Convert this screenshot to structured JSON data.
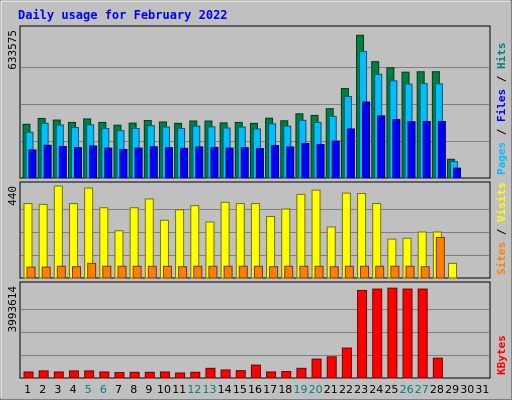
{
  "chart_data": {
    "type": "bar",
    "title": "Daily usage for February 2022",
    "days": [
      "1",
      "2",
      "3",
      "4",
      "5",
      "6",
      "7",
      "8",
      "9",
      "10",
      "11",
      "12",
      "13",
      "14",
      "15",
      "16",
      "17",
      "18",
      "19",
      "20",
      "21",
      "22",
      "23",
      "24",
      "25",
      "26",
      "27",
      "28",
      "29",
      "30",
      "31"
    ],
    "weekend_days": [
      "5",
      "6",
      "12",
      "13",
      "19",
      "20",
      "26",
      "27"
    ],
    "panels": [
      {
        "id": "hits-files-pages",
        "max_label": "633575",
        "ylim": [
          0,
          633575
        ],
        "legend": [
          "Pages",
          "Files",
          "Hits"
        ],
        "series": [
          {
            "name": "Hits",
            "color": "#008040",
            "values": [
              230000,
              255000,
              248000,
              238000,
              253000,
              238000,
              226000,
              235000,
              246000,
              240000,
              234000,
              244000,
              244000,
              236000,
              238000,
              234000,
              256000,
              245000,
              275000,
              268000,
              297000,
              383000,
              611000,
              498000,
              472000,
              453000,
              455000,
              455000,
              80000,
              0,
              0
            ]
          },
          {
            "name": "Files",
            "color": "#00bfff",
            "values": [
              196000,
              234000,
              227000,
              216000,
              228000,
              212000,
              203000,
              212000,
              224000,
              218000,
              212000,
              222000,
              219000,
              214000,
              218000,
              210000,
              232000,
              222000,
              247000,
              238000,
              264000,
              349000,
              541000,
              444000,
              416000,
              402000,
              404000,
              403000,
              70000,
              0,
              0
            ]
          },
          {
            "name": "Pages",
            "color": "#0000ff",
            "values": [
              120000,
              140000,
              135000,
              130000,
              137000,
              128000,
              122000,
              128000,
              134000,
              130000,
              127000,
              133000,
              131000,
              128000,
              130000,
              126000,
              139000,
              133000,
              148000,
              143000,
              158000,
              210000,
              325000,
              266000,
              250000,
              241000,
              242000,
              242000,
              42000,
              0,
              0
            ]
          }
        ]
      },
      {
        "id": "visits-sites",
        "max_label": "440",
        "ylim": [
          0,
          440
        ],
        "legend": [
          "Sites",
          "Visits"
        ],
        "series": [
          {
            "name": "Visits",
            "color": "#ffff00",
            "values": [
              356,
              352,
              440,
              356,
              430,
              336,
              226,
              336,
              378,
              276,
              326,
              346,
              268,
              362,
              356,
              356,
              294,
              330,
              400,
              420,
              244,
              406,
              404,
              356,
              186,
              190,
              220,
              220,
              70,
              0,
              0
            ]
          },
          {
            "name": "Sites",
            "color": "#ff8000",
            "values": [
              52,
              52,
              56,
              54,
              70,
              56,
              56,
              56,
              56,
              56,
              54,
              56,
              56,
              56,
              56,
              56,
              54,
              56,
              56,
              56,
              54,
              56,
              56,
              56,
              56,
              56,
              54,
              194,
              0,
              0,
              0
            ]
          }
        ]
      },
      {
        "id": "kbytes",
        "max_label": "3993614",
        "ylim": [
          0,
          3993614
        ],
        "legend": [
          "KBytes"
        ],
        "series": [
          {
            "name": "KBytes",
            "color": "#ff0000",
            "values": [
              262000,
              310000,
              262000,
              310000,
              310000,
              262000,
              238000,
              248000,
              248000,
              262000,
              218000,
              248000,
              420000,
              350000,
              320000,
              560000,
              262000,
              280000,
              420000,
              820000,
              920000,
              1300000,
              3800000,
              3860000,
              3900000,
              3860000,
              3860000,
              860000,
              0,
              0,
              0
            ]
          }
        ]
      }
    ]
  }
}
